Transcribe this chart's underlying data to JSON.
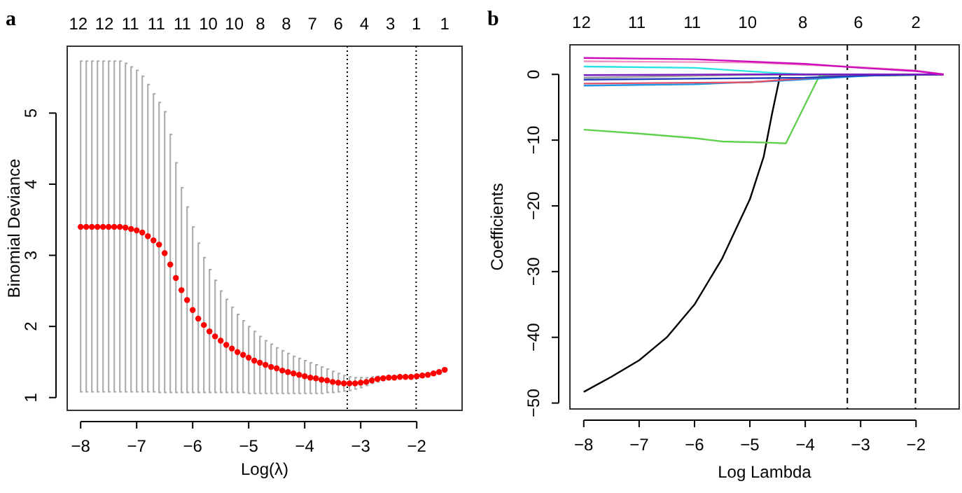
{
  "chart_data": [
    {
      "type": "scatter",
      "title": "a",
      "xlabel": "Log(λ)",
      "ylabel": "Binomial Deviance",
      "marker": "circle",
      "color": "#ff0000",
      "x": [
        -8,
        -7.9,
        -7.8,
        -7.7,
        -7.6,
        -7.5,
        -7.4,
        -7.3,
        -7.2,
        -7.1,
        -7,
        -6.9,
        -6.8,
        -6.7,
        -6.6,
        -6.5,
        -6.4,
        -6.3,
        -6.2,
        -6.1,
        -6,
        -5.9,
        -5.8,
        -5.7,
        -5.6,
        -5.5,
        -5.4,
        -5.3,
        -5.2,
        -5.1,
        -5,
        -4.9,
        -4.8,
        -4.7,
        -4.6,
        -4.5,
        -4.4,
        -4.3,
        -4.2,
        -4.1,
        -4,
        -3.9,
        -3.8,
        -3.7,
        -3.6,
        -3.5,
        -3.4,
        -3.3,
        -3.2,
        -3.1,
        -3,
        -2.9,
        -2.8,
        -2.7,
        -2.6,
        -2.5,
        -2.4,
        -2.3,
        -2.2,
        -2.1,
        -2,
        -1.9,
        -1.8,
        -1.7,
        -1.6,
        -1.5
      ],
      "values": [
        3.4,
        3.4,
        3.4,
        3.4,
        3.4,
        3.4,
        3.4,
        3.4,
        3.39,
        3.37,
        3.35,
        3.32,
        3.27,
        3.21,
        3.15,
        3.03,
        2.87,
        2.68,
        2.51,
        2.37,
        2.23,
        2.11,
        2.02,
        1.93,
        1.86,
        1.8,
        1.74,
        1.69,
        1.64,
        1.6,
        1.56,
        1.52,
        1.49,
        1.46,
        1.43,
        1.41,
        1.38,
        1.36,
        1.34,
        1.32,
        1.3,
        1.28,
        1.27,
        1.25,
        1.24,
        1.22,
        1.21,
        1.2,
        1.2,
        1.2,
        1.21,
        1.22,
        1.24,
        1.26,
        1.27,
        1.28,
        1.28,
        1.29,
        1.29,
        1.29,
        1.3,
        1.31,
        1.32,
        1.34,
        1.36,
        1.39
      ],
      "errors": [
        [
          1.08,
          5.73
        ],
        [
          1.08,
          5.73
        ],
        [
          1.08,
          5.73
        ],
        [
          1.08,
          5.73
        ],
        [
          1.08,
          5.73
        ],
        [
          1.08,
          5.73
        ],
        [
          1.08,
          5.73
        ],
        [
          1.08,
          5.73
        ],
        [
          1.08,
          5.7
        ],
        [
          1.08,
          5.65
        ],
        [
          1.08,
          5.6
        ],
        [
          1.08,
          5.52
        ],
        [
          1.08,
          5.4
        ],
        [
          1.08,
          5.27
        ],
        [
          1.07,
          5.15
        ],
        [
          1.07,
          5.02
        ],
        [
          1.07,
          4.7
        ],
        [
          1.07,
          4.3
        ],
        [
          1.07,
          3.95
        ],
        [
          1.07,
          3.68
        ],
        [
          1.07,
          3.4
        ],
        [
          1.07,
          3.17
        ],
        [
          1.07,
          2.97
        ],
        [
          1.07,
          2.8
        ],
        [
          1.07,
          2.65
        ],
        [
          1.07,
          2.5
        ],
        [
          1.07,
          2.38
        ],
        [
          1.07,
          2.27
        ],
        [
          1.07,
          2.17
        ],
        [
          1.07,
          2.08
        ],
        [
          1.06,
          2
        ],
        [
          1.06,
          1.93
        ],
        [
          1.06,
          1.86
        ],
        [
          1.06,
          1.8
        ],
        [
          1.06,
          1.75
        ],
        [
          1.06,
          1.7
        ],
        [
          1.06,
          1.66
        ],
        [
          1.06,
          1.62
        ],
        [
          1.06,
          1.58
        ],
        [
          1.06,
          1.55
        ],
        [
          1.06,
          1.52
        ],
        [
          1.06,
          1.49
        ],
        [
          1.06,
          1.46
        ],
        [
          1.06,
          1.43
        ],
        [
          1.07,
          1.4
        ],
        [
          1.07,
          1.37
        ],
        [
          1.08,
          1.34
        ],
        [
          1.09,
          1.31
        ],
        [
          1.1,
          1.29
        ],
        [
          1.12,
          1.28
        ],
        [
          1.14,
          1.28
        ],
        [
          1.17,
          1.28
        ],
        [
          1.2,
          1.29
        ],
        [
          1.22,
          1.3
        ],
        [
          1.24,
          1.3
        ],
        [
          1.26,
          1.3
        ],
        [
          1.26,
          1.3
        ],
        [
          1.27,
          1.31
        ],
        [
          1.27,
          1.31
        ],
        [
          1.27,
          1.31
        ],
        [
          1.28,
          1.32
        ],
        [
          1.29,
          1.33
        ],
        [
          1.3,
          1.34
        ],
        [
          1.32,
          1.36
        ],
        [
          1.34,
          1.38
        ],
        [
          1.37,
          1.41
        ]
      ],
      "xlim": [
        -8.24,
        -1.19
      ],
      "ylim": [
        0.82,
        5.94
      ],
      "xticks": [
        -8,
        -7,
        -6,
        -5,
        -4,
        -3,
        -2
      ],
      "yticks": [
        1,
        2,
        3,
        4,
        5
      ],
      "annotations": [
        "12 12 11 11 11 10 10 8 8 7 6 4 3 1 1"
      ],
      "ref_lines": [
        {
          "axis": "x",
          "value": -3.24,
          "line_style": "dotted"
        },
        {
          "axis": "x",
          "value": -2.01,
          "line_style": "dotted"
        }
      ]
    },
    {
      "type": "line",
      "title": "b",
      "xlabel": "Log Lambda",
      "ylabel": "Coefficients",
      "line_style": "solid",
      "xlim": [
        -8.25,
        -1.22
      ],
      "ylim": [
        -50.9,
        4.5
      ],
      "xticks": [
        -8,
        -7,
        -6,
        -5,
        -4,
        -3,
        -2
      ],
      "yticks": [
        0,
        -10,
        -20,
        -30,
        -40,
        -50
      ],
      "annotations": [
        "12 11 11 10 8 6 2"
      ],
      "ref_lines": [
        {
          "axis": "x",
          "value": -3.24,
          "line_style": "dashed"
        },
        {
          "axis": "x",
          "value": -2.01,
          "line_style": "dashed"
        }
      ],
      "series": [
        {
          "color": "#000000",
          "x": [
            -8,
            -7.5,
            -7,
            -6.5,
            -6,
            -5.5,
            -5,
            -4.75,
            -4.6,
            -4.45,
            -1.5
          ],
          "values": [
            -48.3,
            -46,
            -43.5,
            -40,
            -35,
            -28,
            -19,
            -12.5,
            -6,
            0,
            0
          ]
        },
        {
          "color": "#61d04f",
          "x": [
            -8,
            -7,
            -6,
            -5.5,
            -4.6,
            -4.35,
            -3.75,
            -1.5
          ],
          "values": [
            -8.4,
            -9,
            -9.7,
            -10.2,
            -10.4,
            -10.5,
            -0.3,
            0
          ]
        },
        {
          "color": "#28e2e5",
          "x": [
            -8,
            -6,
            -4.5,
            -4,
            -1.5
          ],
          "values": [
            1.2,
            1,
            0.2,
            0,
            0
          ]
        },
        {
          "color": "#2297e6",
          "x": [
            -8,
            -6,
            -4.5,
            -3.5,
            -2.5,
            -1.5
          ],
          "values": [
            -1.7,
            -1.5,
            -1,
            -0.5,
            0,
            0
          ]
        },
        {
          "color": "#df536b",
          "x": [
            -8,
            -5,
            -4,
            -3,
            -1.5
          ],
          "values": [
            -1.4,
            -1.2,
            -0.6,
            0,
            0
          ]
        },
        {
          "color": "#9e9e9e",
          "x": [
            -8,
            -4.5,
            -1.5
          ],
          "values": [
            -0.5,
            0,
            0
          ]
        },
        {
          "color": "#1f3fbf",
          "x": [
            -8,
            -4,
            -3,
            -1.5
          ],
          "values": [
            -0.8,
            -0.5,
            -0.2,
            0
          ]
        },
        {
          "color": "#7a1fbf",
          "x": [
            -8,
            -5,
            -1.5
          ],
          "values": [
            -0.1,
            0,
            0
          ]
        },
        {
          "color": "#f08fc0",
          "x": [
            -8,
            -5,
            -3,
            -2,
            -1.5
          ],
          "values": [
            2,
            1.8,
            1.1,
            0.6,
            0
          ]
        },
        {
          "color": "#cd0bbc",
          "x": [
            -8,
            -6,
            -4,
            -3,
            -2,
            -1.5
          ],
          "values": [
            2.5,
            2.3,
            1.6,
            1,
            0.5,
            0
          ]
        }
      ]
    }
  ]
}
